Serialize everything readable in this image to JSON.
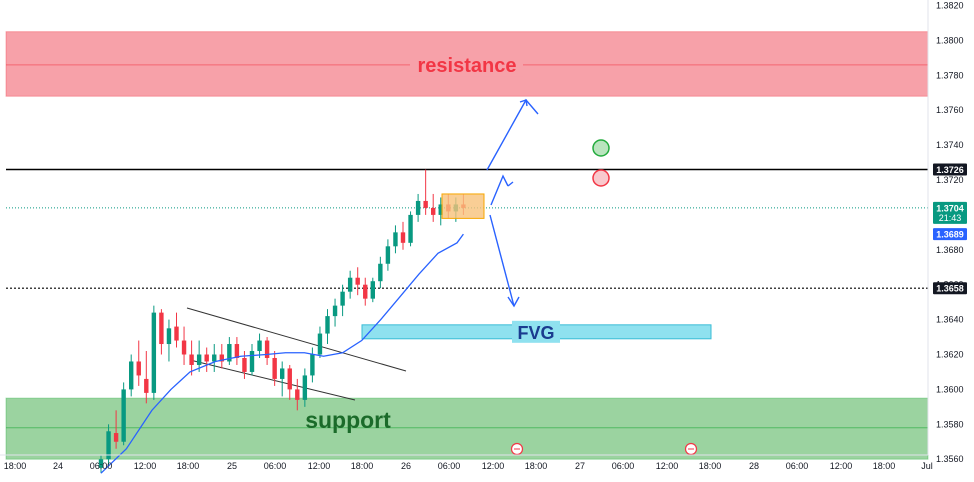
{
  "chart_data": {
    "type": "candlestick",
    "y_axis": {
      "ticks": [
        "1.3820",
        "1.3800",
        "1.3780",
        "1.3760",
        "1.3740",
        "1.3720",
        "1.3700",
        "1.3680",
        "1.3660",
        "1.3640",
        "1.3620",
        "1.3600",
        "1.3580",
        "1.3560"
      ],
      "range": [
        1.3555,
        1.3825
      ]
    },
    "x_axis": {
      "ticks": [
        "18:00",
        "24",
        "06:00",
        "12:00",
        "18:00",
        "25",
        "06:00",
        "12:00",
        "18:00",
        "26",
        "06:00",
        "12:00",
        "18:00",
        "27",
        "06:00",
        "12:00",
        "18:00",
        "28",
        "06:00",
        "12:00",
        "18:00",
        "Jul"
      ]
    },
    "zones": [
      {
        "label": "resistance",
        "from": 1.3768,
        "to": 1.3805,
        "color": "#f23645"
      },
      {
        "label": "support",
        "from": 1.356,
        "to": 1.3595,
        "color": "#22ab3c"
      },
      {
        "label": "FVG",
        "from": 1.3629,
        "to": 1.3637,
        "color": "#5fd3e8"
      }
    ],
    "zone_center_lines": [
      1.3786,
      1.3578
    ],
    "levels": [
      {
        "label": "1.3726",
        "value": 1.3726,
        "style": "solid",
        "color": "#000000"
      },
      {
        "label": "1.3658",
        "value": 1.3658,
        "style": "dotted",
        "color": "#000000"
      }
    ],
    "price_tags": [
      {
        "price": "1.3704",
        "time": "21:43",
        "value": 1.3704,
        "color": "#089981"
      },
      {
        "label": "1.3689",
        "value": 1.3689,
        "color": "#2962ff"
      }
    ],
    "current_price": 1.3704,
    "series": [
      {
        "name": "ma",
        "color": "#2962ff",
        "points": [
          [
            0,
            1.3552
          ],
          [
            4,
            1.3566
          ],
          [
            8,
            1.3588
          ],
          [
            11,
            1.36
          ],
          [
            14,
            1.361
          ],
          [
            18,
            1.3616
          ],
          [
            22,
            1.3619
          ],
          [
            26,
            1.362
          ],
          [
            29,
            1.3621
          ],
          [
            32,
            1.3621
          ],
          [
            35,
            1.3619
          ],
          [
            38,
            1.3621
          ],
          [
            41,
            1.3628
          ],
          [
            44,
            1.364
          ],
          [
            47,
            1.3653
          ],
          [
            50,
            1.3666
          ],
          [
            53,
            1.3678
          ],
          [
            56,
            1.3684
          ],
          [
            57,
            1.3689
          ]
        ]
      }
    ],
    "candles": [
      [
        0,
        1.3555,
        1.3562,
        1.3552,
        1.356
      ],
      [
        1,
        1.356,
        1.358,
        1.3556,
        1.3576
      ],
      [
        2,
        1.3575,
        1.3588,
        1.3566,
        1.357
      ],
      [
        3,
        1.357,
        1.3604,
        1.3568,
        1.36
      ],
      [
        4,
        1.36,
        1.362,
        1.3596,
        1.3616
      ],
      [
        5,
        1.3616,
        1.3628,
        1.3602,
        1.3608
      ],
      [
        6,
        1.3606,
        1.3622,
        1.3592,
        1.3598
      ],
      [
        7,
        1.3598,
        1.3648,
        1.3594,
        1.3644
      ],
      [
        8,
        1.3644,
        1.3646,
        1.362,
        1.3626
      ],
      [
        9,
        1.3626,
        1.364,
        1.3616,
        1.3635
      ],
      [
        10,
        1.3636,
        1.3644,
        1.3624,
        1.3628
      ],
      [
        11,
        1.3628,
        1.3636,
        1.3614,
        1.362
      ],
      [
        12,
        1.362,
        1.3628,
        1.3608,
        1.3614
      ],
      [
        13,
        1.3614,
        1.3628,
        1.361,
        1.362
      ],
      [
        14,
        1.362,
        1.3624,
        1.361,
        1.3616
      ],
      [
        15,
        1.3616,
        1.3626,
        1.361,
        1.362
      ],
      [
        16,
        1.362,
        1.3626,
        1.3612,
        1.3616
      ],
      [
        17,
        1.3616,
        1.363,
        1.3614,
        1.3626
      ],
      [
        18,
        1.3626,
        1.363,
        1.3614,
        1.3618
      ],
      [
        19,
        1.3618,
        1.3622,
        1.3606,
        1.361
      ],
      [
        20,
        1.361,
        1.3626,
        1.3608,
        1.3622
      ],
      [
        21,
        1.3622,
        1.3632,
        1.3618,
        1.3628
      ],
      [
        22,
        1.3628,
        1.363,
        1.3614,
        1.3618
      ],
      [
        23,
        1.3618,
        1.3622,
        1.3602,
        1.3606
      ],
      [
        24,
        1.3606,
        1.3616,
        1.3596,
        1.3612
      ],
      [
        25,
        1.3612,
        1.3614,
        1.3594,
        1.36
      ],
      [
        26,
        1.36,
        1.3606,
        1.3588,
        1.3594
      ],
      [
        27,
        1.3594,
        1.3612,
        1.359,
        1.3608
      ],
      [
        28,
        1.3608,
        1.3624,
        1.3604,
        1.362
      ],
      [
        29,
        1.362,
        1.3636,
        1.3618,
        1.3632
      ],
      [
        30,
        1.3632,
        1.3646,
        1.3626,
        1.3642
      ],
      [
        31,
        1.3642,
        1.3652,
        1.3636,
        1.3648
      ],
      [
        32,
        1.3648,
        1.366,
        1.3642,
        1.3656
      ],
      [
        33,
        1.3656,
        1.3668,
        1.3652,
        1.3664
      ],
      [
        34,
        1.3664,
        1.367,
        1.3654,
        1.366
      ],
      [
        35,
        1.366,
        1.3664,
        1.3648,
        1.3652
      ],
      [
        36,
        1.3652,
        1.3664,
        1.365,
        1.3662
      ],
      [
        37,
        1.3662,
        1.3676,
        1.3658,
        1.3672
      ],
      [
        38,
        1.3672,
        1.3686,
        1.3668,
        1.3682
      ],
      [
        39,
        1.3682,
        1.3694,
        1.3678,
        1.369
      ],
      [
        40,
        1.369,
        1.3696,
        1.368,
        1.3684
      ],
      [
        41,
        1.3684,
        1.3702,
        1.3682,
        1.37
      ],
      [
        42,
        1.37,
        1.3712,
        1.3696,
        1.3708
      ],
      [
        43,
        1.3708,
        1.3726,
        1.37,
        1.3704
      ],
      [
        44,
        1.3704,
        1.3712,
        1.3696,
        1.37
      ],
      [
        45,
        1.37,
        1.371,
        1.3694,
        1.3706
      ],
      [
        46,
        1.3706,
        1.3712,
        1.3698,
        1.3702
      ],
      [
        47,
        1.3702,
        1.371,
        1.3696,
        1.3706
      ],
      [
        48,
        1.3706,
        1.3712,
        1.37,
        1.3704
      ]
    ],
    "annotations": {
      "channel_upper": [
        [
          1.3648,
          0
        ],
        [
          1.362,
          1
        ]
      ],
      "channel_lower": [
        [
          1.3626,
          0
        ],
        [
          1.359,
          1
        ]
      ],
      "highlight_box": {
        "from": 1.3698,
        "to": 1.3712,
        "color": "#f7a600"
      },
      "arrows": [
        "up-right",
        "down",
        "bounce"
      ],
      "target_marks": [
        {
          "color": "#22ab3c"
        },
        {
          "color": "#f23645"
        }
      ]
    }
  }
}
